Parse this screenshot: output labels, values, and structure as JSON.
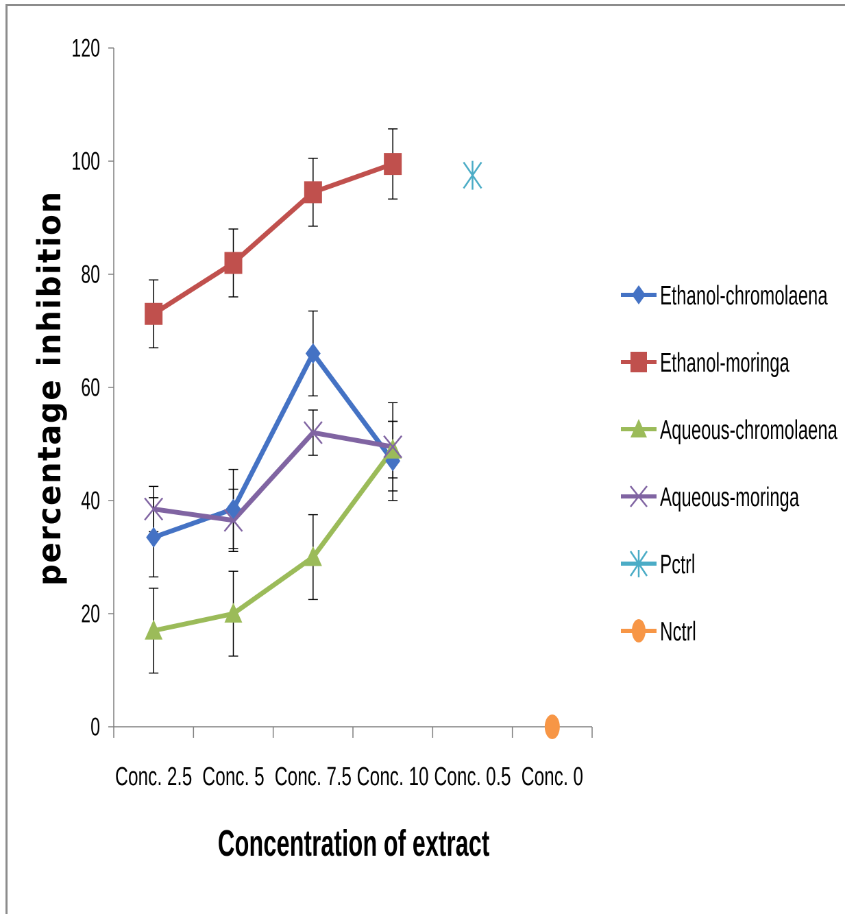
{
  "chart_data": {
    "type": "line",
    "xlabel": "Concentration of extract",
    "ylabel": "percentage inhibition",
    "ylim": [
      0,
      120
    ],
    "yticks": [
      "0",
      "20",
      "40",
      "60",
      "80",
      "100",
      "120"
    ],
    "categories": [
      "Conc. 2.5",
      "Conc. 5",
      "Conc. 7.5",
      "Conc. 10",
      "Conc. 0.5",
      "Conc. 0"
    ],
    "grid": false,
    "legend_position": "right",
    "series": [
      {
        "name": "Ethanol-chromolaena",
        "color": "#4472c4",
        "marker": "diamond",
        "values": [
          33.5,
          38.5,
          66,
          47,
          null,
          null
        ],
        "errors": [
          7,
          7,
          7.5,
          7,
          null,
          null
        ]
      },
      {
        "name": "Ethanol-moringa",
        "color": "#c0504d",
        "marker": "square",
        "values": [
          73,
          82,
          94.5,
          99.5,
          null,
          null
        ],
        "errors": [
          6,
          6,
          6,
          6.2,
          null,
          null
        ]
      },
      {
        "name": "Aqueous-chromolaena",
        "color": "#9bbb59",
        "marker": "triangle",
        "values": [
          17,
          20,
          30,
          49,
          null,
          null
        ],
        "errors": [
          7.5,
          7.5,
          7.5,
          5,
          null,
          null
        ]
      },
      {
        "name": "Aqueous-moringa",
        "color": "#8064a2",
        "marker": "x",
        "values": [
          38.5,
          36.5,
          52,
          49.5,
          null,
          null
        ],
        "errors": [
          4,
          5.5,
          4,
          7.8,
          null,
          null
        ]
      },
      {
        "name": "Pctrl",
        "color": "#4bacc6",
        "marker": "star",
        "values": [
          null,
          null,
          null,
          null,
          97.5,
          null
        ],
        "errors": [
          null,
          null,
          null,
          null,
          null,
          null
        ]
      },
      {
        "name": "Nctrl",
        "color": "#f79646",
        "marker": "circle",
        "values": [
          null,
          null,
          null,
          null,
          null,
          0
        ],
        "errors": [
          null,
          null,
          null,
          null,
          null,
          null
        ]
      }
    ]
  }
}
